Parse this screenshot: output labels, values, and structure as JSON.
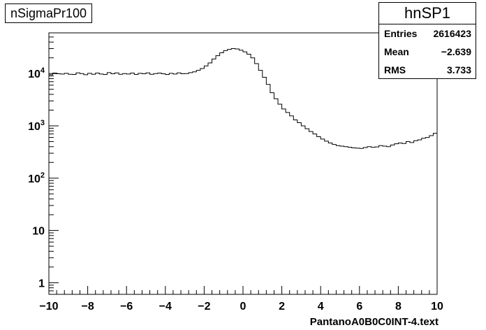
{
  "title": "nSigmaPr100",
  "stats": {
    "name": "hnSP1",
    "rows": [
      {
        "label": "Entries",
        "value": "2616423"
      },
      {
        "label": "Mean",
        "value": "−2.639"
      },
      {
        "label": "RMS",
        "value": "3.733"
      }
    ]
  },
  "chart_data": {
    "type": "line",
    "style": "histogram-step",
    "title": "nSigmaPr100",
    "xlabel": "PantanoA0B0C0INT-4.text",
    "ylabel": "",
    "xlim": [
      -10,
      10
    ],
    "ylim": [
      0.6,
      60000
    ],
    "yscale": "log",
    "bins": 100,
    "x_ticks": [
      "−10",
      "−8",
      "−6",
      "−4",
      "−2",
      "0",
      "2",
      "4",
      "6",
      "8",
      "10"
    ],
    "y_ticks": [
      {
        "value": 1,
        "label": "1"
      },
      {
        "value": 10,
        "label": "10"
      },
      {
        "value": 100,
        "label": "10",
        "exp": "2"
      },
      {
        "value": 1000,
        "label": "10",
        "exp": "3"
      },
      {
        "value": 10000,
        "label": "10",
        "exp": "4"
      }
    ],
    "series": [
      {
        "values": [
          9500,
          10200,
          9900,
          9800,
          10100,
          9700,
          9600,
          10300,
          10000,
          9500,
          10100,
          9700,
          10200,
          9800,
          9600,
          10400,
          9900,
          10300,
          9700,
          10000,
          9800,
          10200,
          9600,
          10100,
          9900,
          10300,
          9700,
          10000,
          10200,
          9900,
          9600,
          10100,
          9800,
          10300,
          9900,
          10000,
          10400,
          10800,
          11500,
          12500,
          14000,
          16000,
          19000,
          22000,
          25000,
          27500,
          29000,
          30000,
          29500,
          28000,
          26000,
          23500,
          20000,
          15500,
          11500,
          8500,
          6200,
          4300,
          3300,
          2600,
          2100,
          1800,
          1550,
          1300,
          1150,
          1000,
          880,
          780,
          700,
          620,
          560,
          510,
          470,
          440,
          420,
          410,
          400,
          390,
          380,
          375,
          370,
          385,
          400,
          390,
          395,
          420,
          410,
          400,
          430,
          455,
          470,
          460,
          500,
          480,
          520,
          540,
          580,
          600,
          650,
          720
        ]
      }
    ]
  }
}
